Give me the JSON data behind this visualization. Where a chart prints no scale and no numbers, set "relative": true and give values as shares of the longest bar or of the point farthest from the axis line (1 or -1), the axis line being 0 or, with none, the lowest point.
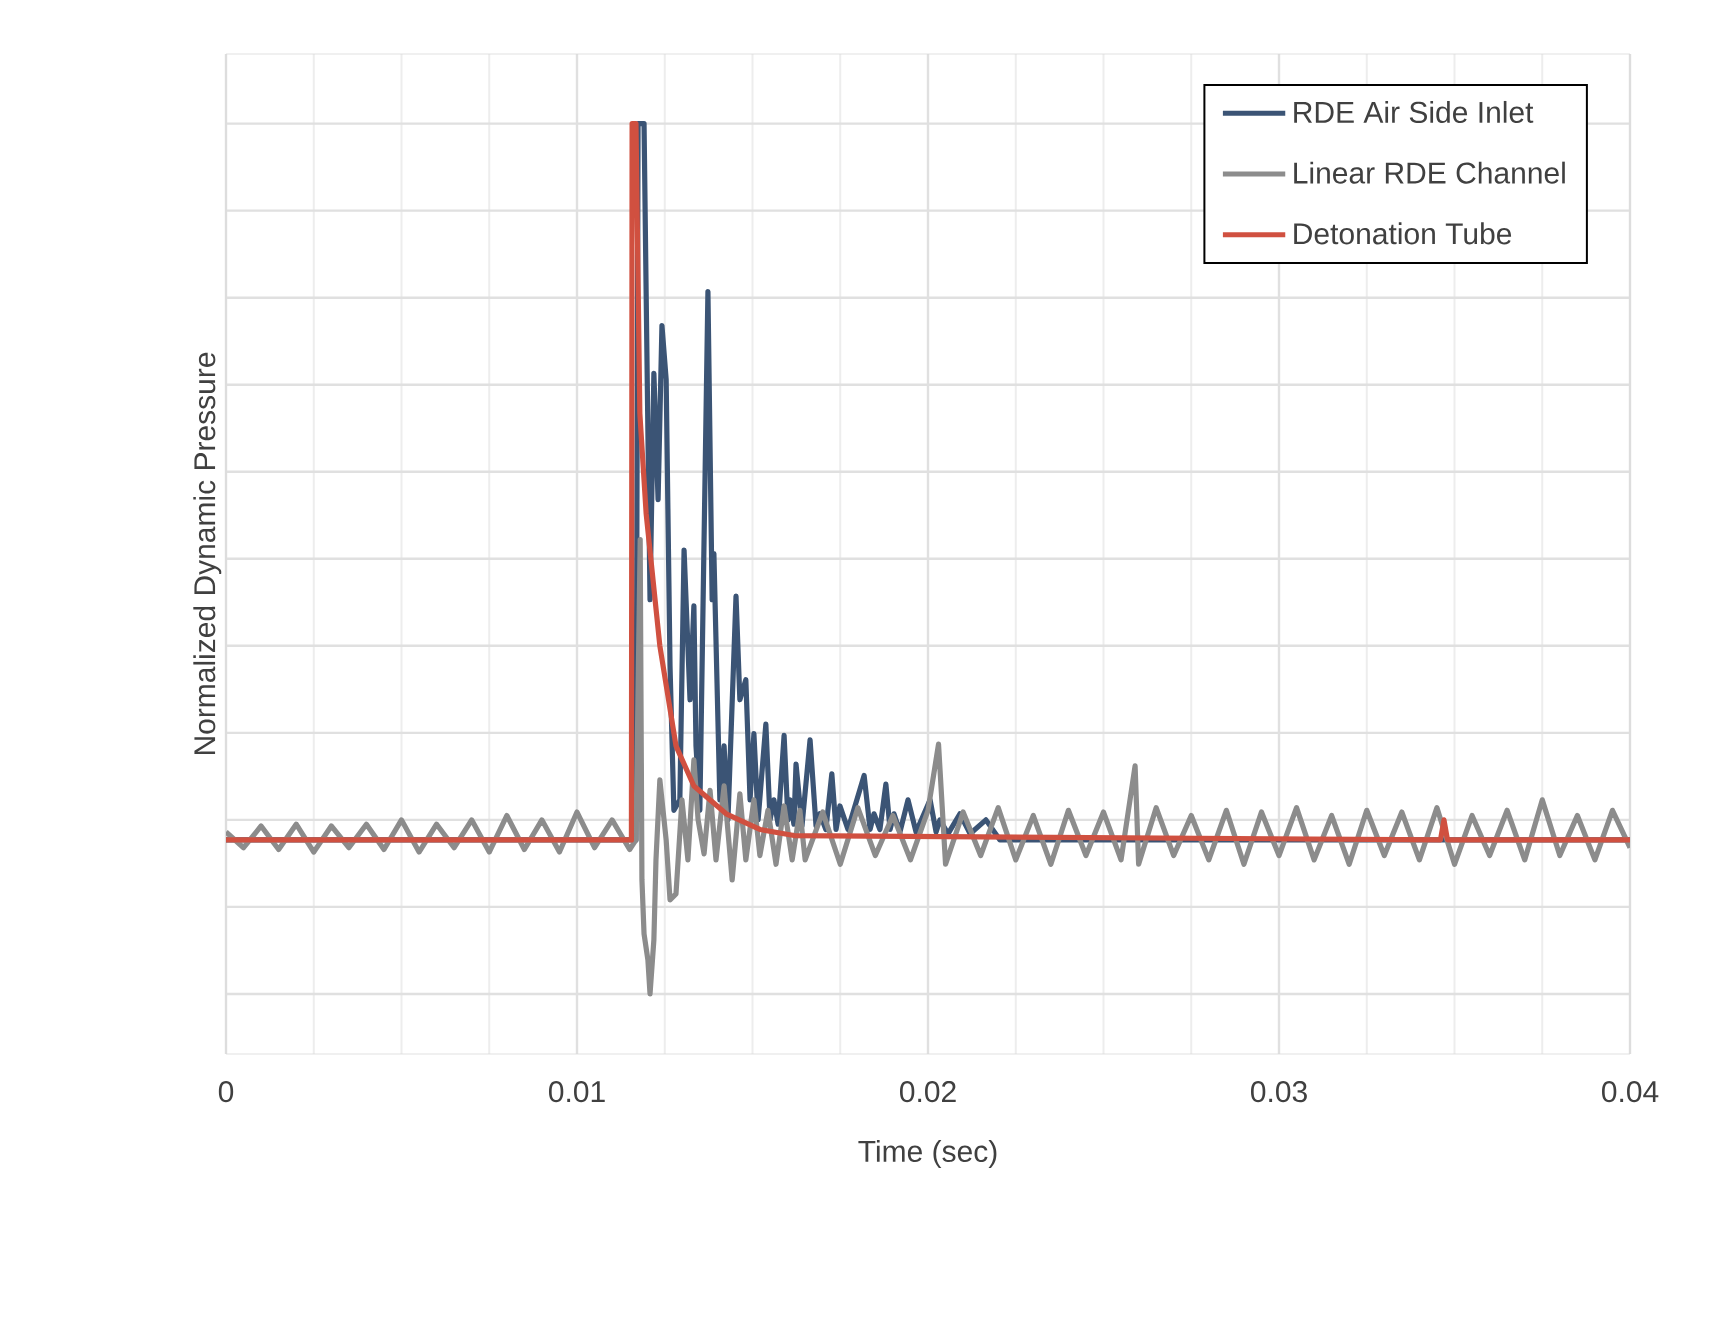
{
  "chart_data": {
    "type": "line",
    "relative": true,
    "xlabel": "Time (sec)",
    "ylabel": "Normalized Dynamic Pressure",
    "xlim": [
      0,
      0.04
    ],
    "xticks": [
      0,
      0.01,
      0.02,
      0.03,
      0.04
    ],
    "grid": true,
    "legend": "top right",
    "line_style": "solid",
    "marker": "none",
    "series": [
      {
        "name": "RDE Air Side Inlet",
        "color": "#3b5475",
        "x": [
          0,
          0.01066,
          0.01168,
          0.01174,
          0.01191,
          0.01197,
          0.01208,
          0.01219,
          0.01231,
          0.01242,
          0.01254,
          0.01265,
          0.01276,
          0.01293,
          0.01305,
          0.01322,
          0.01333,
          0.01339,
          0.0135,
          0.01373,
          0.01385,
          0.0139,
          0.01407,
          0.01419,
          0.0143,
          0.01453,
          0.01464,
          0.01481,
          0.01493,
          0.01504,
          0.01516,
          0.01538,
          0.0155,
          0.01561,
          0.01573,
          0.0159,
          0.01601,
          0.01607,
          0.01618,
          0.01624,
          0.01641,
          0.01664,
          0.01681,
          0.01692,
          0.01709,
          0.01726,
          0.01738,
          0.01749,
          0.01772,
          0.01818,
          0.01835,
          0.01846,
          0.01863,
          0.0188,
          0.01892,
          0.01903,
          0.0192,
          0.01943,
          0.01966,
          0.02006,
          0.02023,
          0.02034,
          0.02057,
          0.02091,
          0.0212,
          0.02165,
          0.02205,
          0.04
        ],
        "values": [
          0.177,
          0.177,
          0.177,
          1.0,
          1.0,
          0.805,
          0.453,
          0.713,
          0.568,
          0.768,
          0.706,
          0.377,
          0.211,
          0.223,
          0.51,
          0.338,
          0.446,
          0.285,
          0.211,
          0.807,
          0.453,
          0.506,
          0.223,
          0.285,
          0.2,
          0.457,
          0.338,
          0.361,
          0.223,
          0.299,
          0.2,
          0.31,
          0.2,
          0.223,
          0.195,
          0.297,
          0.2,
          0.223,
          0.195,
          0.264,
          0.193,
          0.292,
          0.193,
          0.207,
          0.189,
          0.253,
          0.189,
          0.216,
          0.189,
          0.251,
          0.189,
          0.207,
          0.189,
          0.241,
          0.189,
          0.207,
          0.186,
          0.223,
          0.186,
          0.223,
          0.186,
          0.2,
          0.184,
          0.207,
          0.184,
          0.2,
          0.177,
          0.177
        ]
      },
      {
        "name": "Linear RDE Channel",
        "color": "#8c8c8c",
        "x": [
          0,
          0.0005,
          0.001,
          0.0015,
          0.002,
          0.0025,
          0.003,
          0.0035,
          0.004,
          0.0045,
          0.005,
          0.0055,
          0.006,
          0.0065,
          0.007,
          0.0075,
          0.008,
          0.0085,
          0.009,
          0.0095,
          0.01,
          0.0105,
          0.011,
          0.0115,
          0.01168,
          0.0118,
          0.01185,
          0.01191,
          0.01202,
          0.01208,
          0.01219,
          0.01225,
          0.01236,
          0.01254,
          0.01265,
          0.01282,
          0.01299,
          0.01316,
          0.01333,
          0.01345,
          0.01362,
          0.01379,
          0.01396,
          0.01419,
          0.01442,
          0.01464,
          0.01481,
          0.01504,
          0.01521,
          0.01544,
          0.01567,
          0.0159,
          0.01613,
          0.01635,
          0.0165,
          0.017,
          0.0175,
          0.018,
          0.0185,
          0.019,
          0.0195,
          0.02,
          0.0203,
          0.0205,
          0.021,
          0.0215,
          0.022,
          0.0225,
          0.023,
          0.0235,
          0.024,
          0.0245,
          0.025,
          0.0255,
          0.0259,
          0.026,
          0.0265,
          0.027,
          0.0275,
          0.028,
          0.0285,
          0.029,
          0.0295,
          0.03,
          0.0305,
          0.031,
          0.0315,
          0.032,
          0.0325,
          0.033,
          0.0335,
          0.034,
          0.0345,
          0.035,
          0.0355,
          0.036,
          0.0365,
          0.037,
          0.0375,
          0.038,
          0.0385,
          0.039,
          0.0395,
          0.04
        ],
        "values": [
          0.186,
          0.168,
          0.193,
          0.166,
          0.195,
          0.163,
          0.193,
          0.168,
          0.195,
          0.166,
          0.2,
          0.163,
          0.195,
          0.168,
          0.2,
          0.163,
          0.205,
          0.166,
          0.2,
          0.163,
          0.209,
          0.168,
          0.2,
          0.166,
          0.177,
          0.522,
          0.131,
          0.069,
          0.039,
          0,
          0.062,
          0.154,
          0.246,
          0.177,
          0.108,
          0.115,
          0.223,
          0.154,
          0.269,
          0.2,
          0.161,
          0.234,
          0.154,
          0.239,
          0.131,
          0.23,
          0.154,
          0.223,
          0.159,
          0.211,
          0.149,
          0.216,
          0.154,
          0.211,
          0.154,
          0.209,
          0.149,
          0.214,
          0.159,
          0.205,
          0.154,
          0.211,
          0.287,
          0.149,
          0.209,
          0.159,
          0.214,
          0.154,
          0.205,
          0.149,
          0.211,
          0.159,
          0.209,
          0.154,
          0.262,
          0.149,
          0.214,
          0.159,
          0.205,
          0.154,
          0.211,
          0.149,
          0.209,
          0.159,
          0.214,
          0.154,
          0.205,
          0.149,
          0.211,
          0.159,
          0.209,
          0.154,
          0.214,
          0.149,
          0.205,
          0.159,
          0.211,
          0.154,
          0.223,
          0.159,
          0.205,
          0.154,
          0.211,
          0.168
        ]
      },
      {
        "name": "Detonation Tube",
        "color": "#d05040",
        "x": [
          0,
          0.01155,
          0.01157,
          0.01168,
          0.01179,
          0.01197,
          0.01236,
          0.01282,
          0.01333,
          0.01425,
          0.01521,
          0.01618,
          0.0346,
          0.0347,
          0.0348,
          0.04
        ],
        "values": [
          0.177,
          0.177,
          1.0,
          1.0,
          0.667,
          0.552,
          0.4,
          0.285,
          0.239,
          0.207,
          0.189,
          0.182,
          0.177,
          0.2,
          0.177,
          0.177
        ]
      }
    ]
  }
}
